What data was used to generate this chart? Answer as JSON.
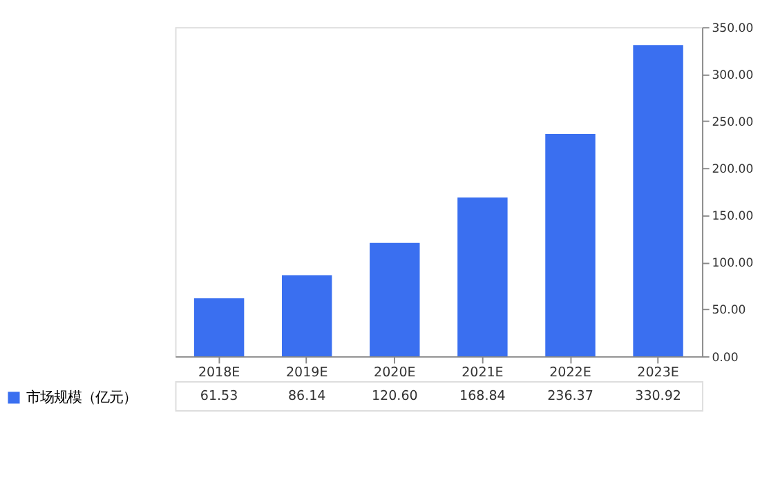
{
  "chart_data": {
    "type": "bar",
    "categories": [
      "2018E",
      "2019E",
      "2020E",
      "2021E",
      "2022E",
      "2023E"
    ],
    "series": [
      {
        "name": "市场规模（亿元）",
        "color": "#3a6ff0",
        "values": [
          61.53,
          86.14,
          120.6,
          168.84,
          236.37,
          330.92
        ],
        "value_labels": [
          "61.53",
          "86.14",
          "120.60",
          "168.84",
          "236.37",
          "330.92"
        ]
      }
    ],
    "ylim": [
      0,
      350
    ],
    "yticks": [
      {
        "value": 0,
        "label": "0.00"
      },
      {
        "value": 50,
        "label": "50.00"
      },
      {
        "value": 100,
        "label": "100.00"
      },
      {
        "value": 150,
        "label": "150.00"
      },
      {
        "value": 200,
        "label": "200.00"
      },
      {
        "value": 250,
        "label": "250.00"
      },
      {
        "value": 300,
        "label": "300.00"
      },
      {
        "value": 350,
        "label": "350.00"
      }
    ],
    "grid": false,
    "legend": "bottom left"
  }
}
